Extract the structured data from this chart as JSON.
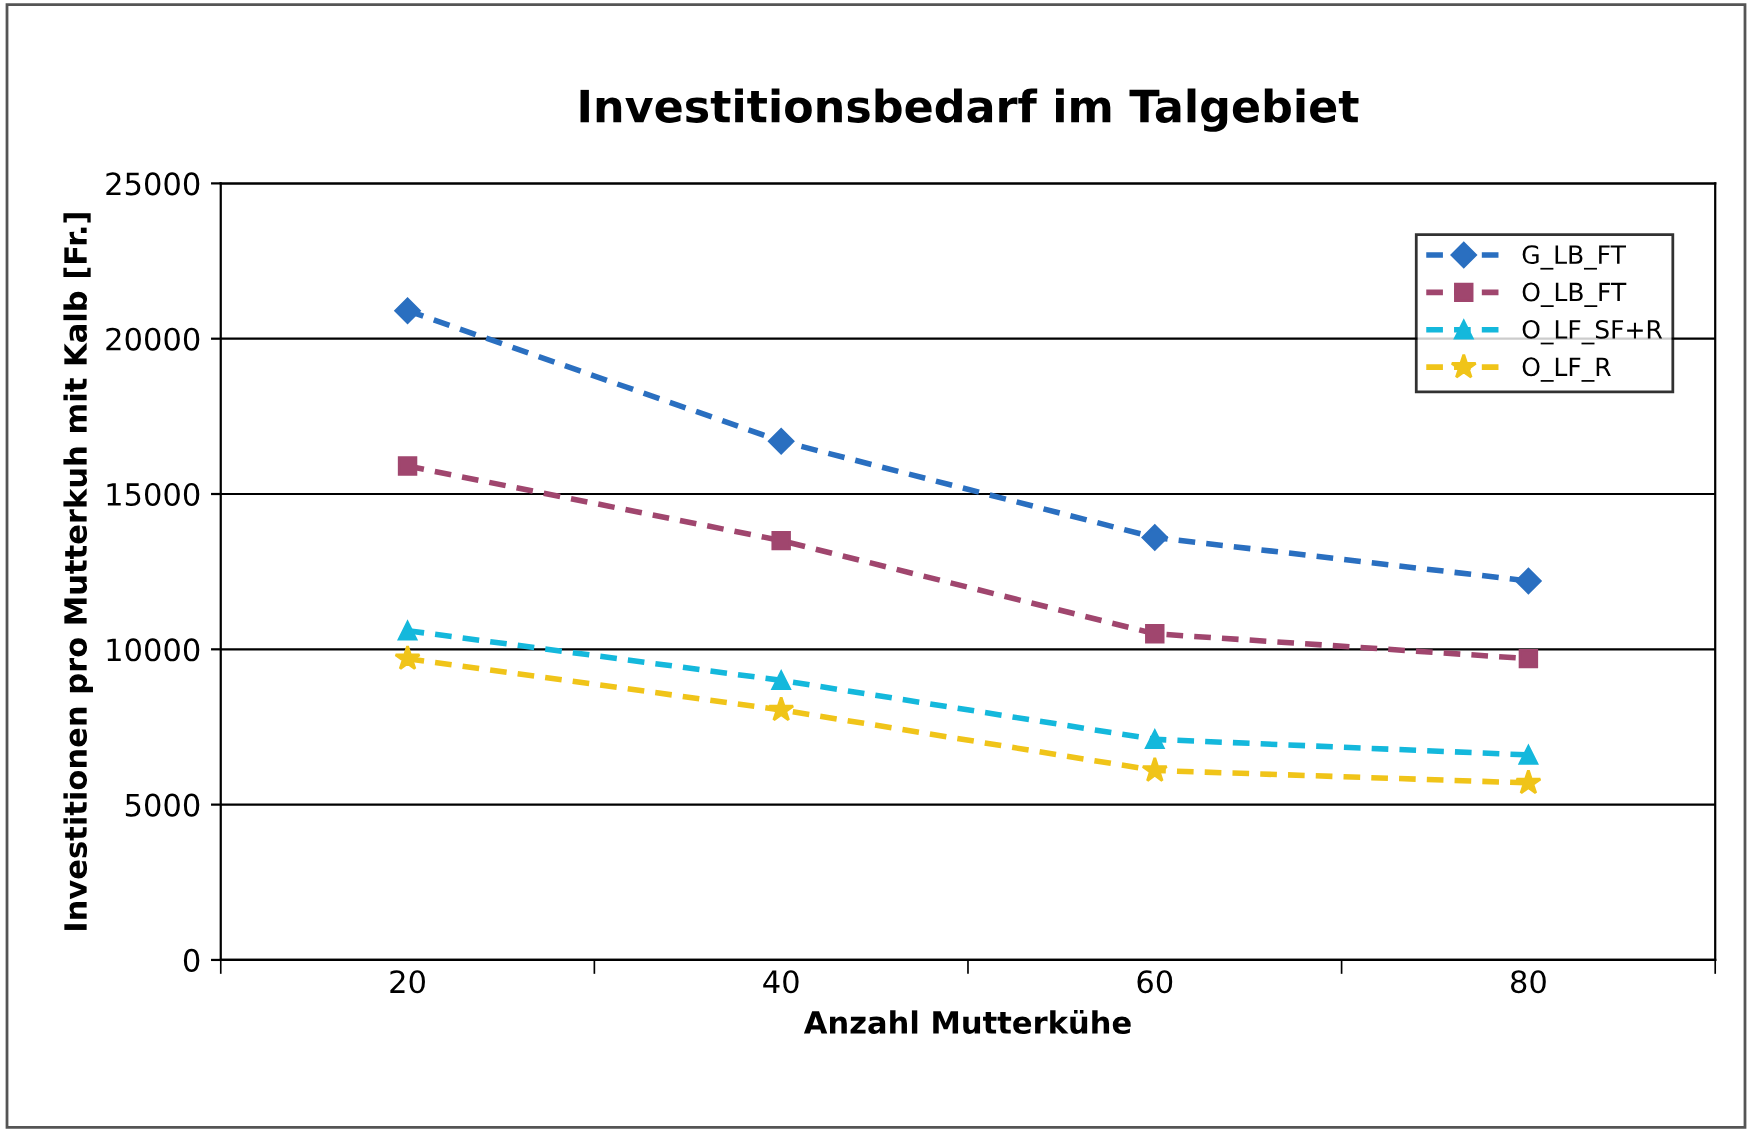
{
  "chart_data": {
    "type": "line",
    "title": "Investitionsbedarf im Talgebiet",
    "xlabel": "Anzahl Mutterkühe",
    "ylabel": "Investitionen pro Mutterkuh mit Kalb [Fr.]",
    "categories": [
      "20",
      "40",
      "60",
      "80"
    ],
    "series": [
      {
        "name": "G_LB_FT",
        "color": "#2a6fc0",
        "marker": "diamond",
        "values": [
          20900,
          16700,
          13600,
          12200
        ]
      },
      {
        "name": "O_LB_FT",
        "color": "#a0466e",
        "marker": "square",
        "values": [
          15900,
          13500,
          10500,
          9700
        ]
      },
      {
        "name": "O_LF_SF+R",
        "color": "#14b8dc",
        "marker": "triangle",
        "values": [
          10600,
          9000,
          7100,
          6600
        ]
      },
      {
        "name": "O_LF_R",
        "color": "#f0c419",
        "marker": "star",
        "values": [
          9700,
          8050,
          6100,
          5700
        ]
      }
    ],
    "ylim": [
      0,
      25000
    ],
    "yticks": [
      0,
      5000,
      10000,
      15000,
      20000,
      25000
    ],
    "grid": "y",
    "legend": "top right",
    "line_style": "dashed"
  }
}
